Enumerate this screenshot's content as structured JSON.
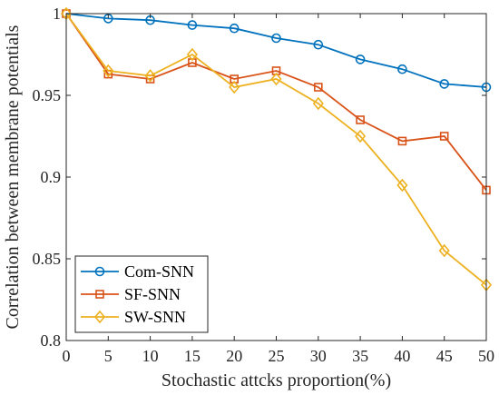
{
  "chart_data": {
    "type": "line",
    "title": "",
    "xlabel": "Stochastic attcks proportion(%)",
    "ylabel": "Correlation between membrane potentials",
    "xlim": [
      0,
      50
    ],
    "ylim": [
      0.8,
      1.0
    ],
    "x": [
      0,
      5,
      10,
      15,
      20,
      25,
      30,
      35,
      40,
      45,
      50
    ],
    "x_ticks": [
      "0",
      "5",
      "10",
      "15",
      "20",
      "25",
      "30",
      "35",
      "40",
      "45",
      "50"
    ],
    "y_ticks": [
      {
        "value": 0.8,
        "label": "0.8"
      },
      {
        "value": 0.85,
        "label": "0.85"
      },
      {
        "value": 0.9,
        "label": "0.9"
      },
      {
        "value": 0.95,
        "label": "0.95"
      },
      {
        "value": 1.0,
        "label": "1"
      }
    ],
    "grid": false,
    "legend_position": "bottom-left",
    "series": [
      {
        "name": "Com-SNN",
        "color": "#0072BD",
        "marker": "circle",
        "values": [
          1.0,
          0.997,
          0.996,
          0.993,
          0.991,
          0.985,
          0.981,
          0.972,
          0.966,
          0.957,
          0.955
        ]
      },
      {
        "name": "SF-SNN",
        "color": "#D95319",
        "marker": "square",
        "values": [
          1.0,
          0.963,
          0.96,
          0.97,
          0.96,
          0.965,
          0.955,
          0.935,
          0.922,
          0.925,
          0.892
        ]
      },
      {
        "name": "SW-SNN",
        "color": "#EDB120",
        "marker": "diamond",
        "values": [
          1.0,
          0.965,
          0.962,
          0.975,
          0.955,
          0.96,
          0.945,
          0.925,
          0.895,
          0.855,
          0.834
        ]
      }
    ]
  }
}
